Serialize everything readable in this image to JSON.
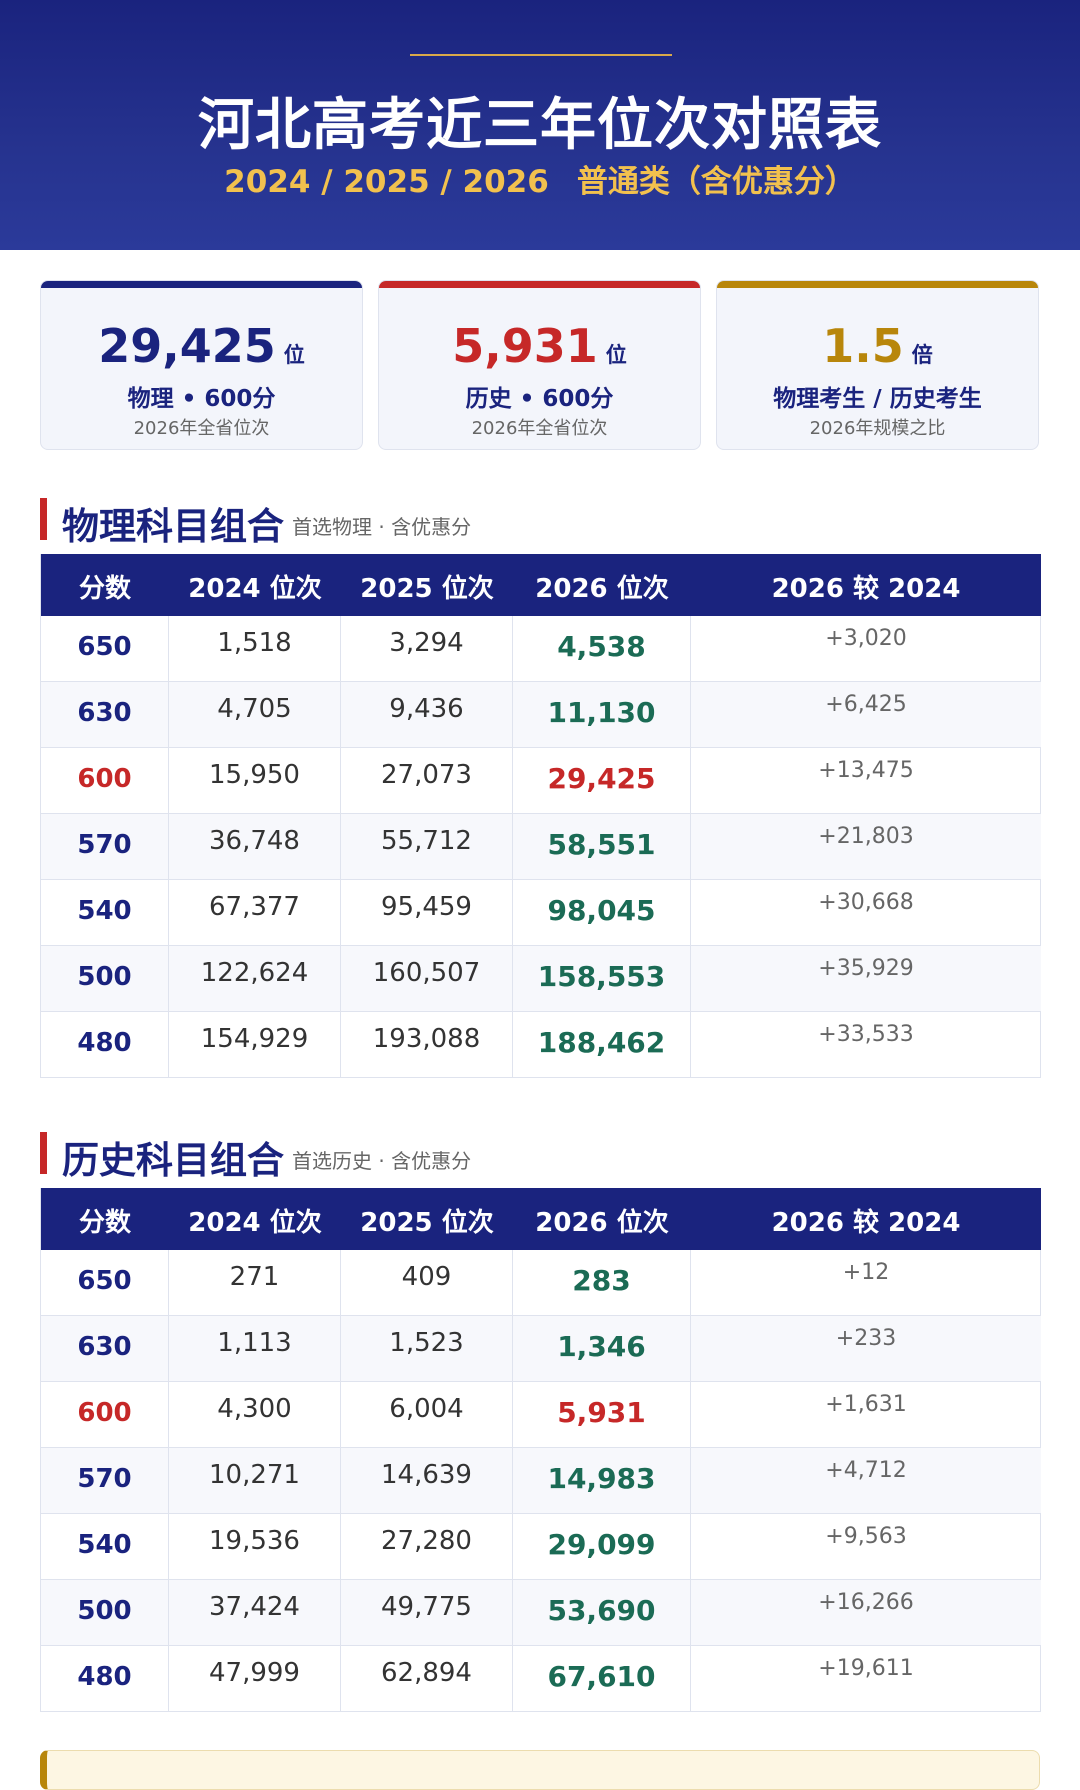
{
  "header": {
    "title": "河北高考近三年位次对照表",
    "years": "2024 / 2025 / 2026",
    "category": "普通类（含优惠分）"
  },
  "cards": [
    {
      "value": "29,425",
      "unit": "位",
      "label": "物理 • 600分",
      "note": "2026年全省位次",
      "color": "#1a237e"
    },
    {
      "value": "5,931",
      "unit": "位",
      "label": "历史 • 600分",
      "note": "2026年全省位次",
      "color": "#c62828"
    },
    {
      "value": "1.5",
      "unit": "倍",
      "label": "物理考生 / 历史考生",
      "note": "2026年规模之比",
      "color": "#b8860b"
    }
  ],
  "table_headers": [
    "分数",
    "2024 位次",
    "2025 位次",
    "2026 位次",
    "2026 较 2024"
  ],
  "physics": {
    "title": "物理科目组合",
    "desc": "首选物理 · 含优惠分",
    "rows": [
      {
        "score": "650",
        "y2024": "1,518",
        "y2025": "3,294",
        "y2026": "4,538",
        "diff": "+3,020"
      },
      {
        "score": "630",
        "y2024": "4,705",
        "y2025": "9,436",
        "y2026": "11,130",
        "diff": "+6,425"
      },
      {
        "score": "600",
        "y2024": "15,950",
        "y2025": "27,073",
        "y2026": "29,425",
        "diff": "+13,475",
        "highlight": true
      },
      {
        "score": "570",
        "y2024": "36,748",
        "y2025": "55,712",
        "y2026": "58,551",
        "diff": "+21,803"
      },
      {
        "score": "540",
        "y2024": "67,377",
        "y2025": "95,459",
        "y2026": "98,045",
        "diff": "+30,668"
      },
      {
        "score": "500",
        "y2024": "122,624",
        "y2025": "160,507",
        "y2026": "158,553",
        "diff": "+35,929"
      },
      {
        "score": "480",
        "y2024": "154,929",
        "y2025": "193,088",
        "y2026": "188,462",
        "diff": "+33,533"
      }
    ]
  },
  "history": {
    "title": "历史科目组合",
    "desc": "首选历史 · 含优惠分",
    "rows": [
      {
        "score": "650",
        "y2024": "271",
        "y2025": "409",
        "y2026": "283",
        "diff": "+12"
      },
      {
        "score": "630",
        "y2024": "1,113",
        "y2025": "1,523",
        "y2026": "1,346",
        "diff": "+233"
      },
      {
        "score": "600",
        "y2024": "4,300",
        "y2025": "6,004",
        "y2026": "5,931",
        "diff": "+1,631",
        "highlight": true
      },
      {
        "score": "570",
        "y2024": "10,271",
        "y2025": "14,639",
        "y2026": "14,983",
        "diff": "+4,712"
      },
      {
        "score": "540",
        "y2024": "19,536",
        "y2025": "27,280",
        "y2026": "29,099",
        "diff": "+9,563"
      },
      {
        "score": "500",
        "y2024": "37,424",
        "y2025": "49,775",
        "y2026": "53,690",
        "diff": "+16,266"
      },
      {
        "score": "480",
        "y2024": "47,999",
        "y2025": "62,894",
        "y2026": "67,610",
        "diff": "+19,611"
      }
    ]
  }
}
